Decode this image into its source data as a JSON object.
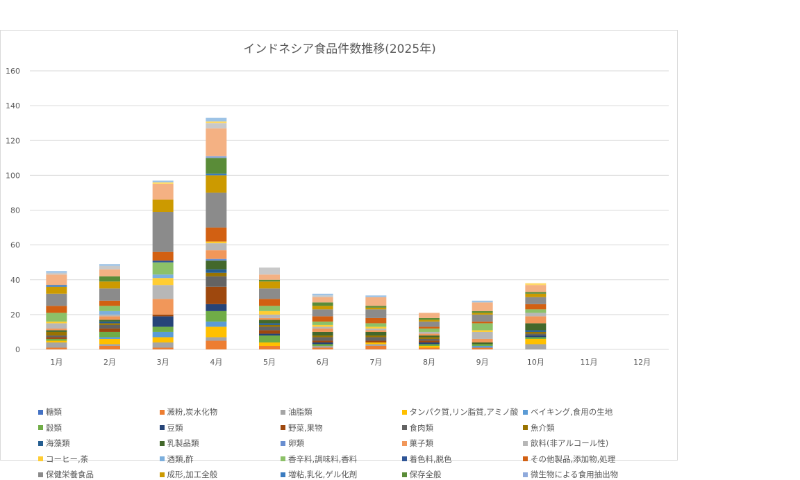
{
  "chart_data": {
    "type": "bar",
    "stacked": true,
    "title": "インドネシア食品件数推移(2025年)",
    "xlabel": "",
    "ylabel": "",
    "ylim": [
      0,
      160
    ],
    "yticks": [
      0,
      20,
      40,
      60,
      80,
      100,
      120,
      140,
      160
    ],
    "grid": true,
    "legend_position": "bottom",
    "categories": [
      "1月",
      "2月",
      "3月",
      "4月",
      "5月",
      "6月",
      "7月",
      "8月",
      "9月",
      "10月",
      "11月",
      "12月"
    ],
    "series": [
      {
        "name": "糖類",
        "color": "#4472c4",
        "values": [
          0,
          0,
          0,
          0,
          0,
          0,
          0,
          0,
          0,
          0,
          0,
          0
        ]
      },
      {
        "name": "澱粉,炭水化物",
        "color": "#ed7d31",
        "values": [
          1,
          2,
          1,
          5,
          2,
          1,
          2,
          1,
          1,
          0,
          0,
          0
        ]
      },
      {
        "name": "油脂類",
        "color": "#a5a5a5",
        "values": [
          3,
          1,
          3,
          2,
          0,
          1,
          1,
          0,
          0,
          3,
          0,
          0
        ]
      },
      {
        "name": "タンパク質,リン脂質,アミノ酸",
        "color": "#ffc000",
        "values": [
          1,
          3,
          3,
          6,
          2,
          0,
          1,
          1,
          0,
          3,
          0,
          0
        ]
      },
      {
        "name": "ベイキング,食用の生地",
        "color": "#5b9bd5",
        "values": [
          0,
          1,
          3,
          3,
          0,
          0,
          0,
          0,
          1,
          0,
          0,
          0
        ]
      },
      {
        "name": "穀類",
        "color": "#70ad47",
        "values": [
          1,
          3,
          3,
          6,
          4,
          1,
          0,
          1,
          1,
          1,
          0,
          0
        ]
      },
      {
        "name": "豆類",
        "color": "#264478",
        "values": [
          0,
          0,
          6,
          4,
          1,
          1,
          0,
          1,
          0,
          1,
          0,
          0
        ]
      },
      {
        "name": "野菜,果物",
        "color": "#9e480e",
        "values": [
          1,
          2,
          1,
          10,
          2,
          1,
          1,
          1,
          0,
          0,
          0,
          0
        ]
      },
      {
        "name": "食肉類",
        "color": "#636363",
        "values": [
          1,
          2,
          0,
          6,
          2,
          2,
          2,
          1,
          0,
          1,
          0,
          0
        ]
      },
      {
        "name": "魚介類",
        "color": "#997300",
        "values": [
          2,
          1,
          0,
          2,
          1,
          1,
          1,
          1,
          0,
          1,
          0,
          0
        ]
      },
      {
        "name": "海藻類",
        "color": "#255e91",
        "values": [
          0,
          1,
          0,
          2,
          1,
          0,
          0,
          0,
          0,
          1,
          0,
          0
        ]
      },
      {
        "name": "乳製品類",
        "color": "#43682b",
        "values": [
          1,
          1,
          0,
          5,
          2,
          2,
          2,
          1,
          1,
          4,
          0,
          0
        ]
      },
      {
        "name": "卵類",
        "color": "#698ed0",
        "values": [
          0,
          0,
          0,
          1,
          0,
          0,
          0,
          0,
          0,
          0,
          0,
          0
        ]
      },
      {
        "name": "菓子類",
        "color": "#f1975a",
        "values": [
          1,
          2,
          9,
          5,
          1,
          2,
          1,
          1,
          2,
          4,
          0,
          0
        ]
      },
      {
        "name": "飲料(非アルコール性)",
        "color": "#b7b7b7",
        "values": [
          3,
          1,
          8,
          4,
          2,
          1,
          1,
          1,
          4,
          2,
          0,
          0
        ]
      },
      {
        "name": "コーヒー,茶",
        "color": "#ffcd33",
        "values": [
          1,
          0,
          4,
          1,
          2,
          1,
          1,
          0,
          1,
          0,
          0,
          0
        ]
      },
      {
        "name": "酒類,酢",
        "color": "#7cafdd",
        "values": [
          0,
          2,
          2,
          0,
          0,
          0,
          0,
          0,
          0,
          0,
          0,
          0
        ]
      },
      {
        "name": "香辛料,調味料,香料",
        "color": "#8cc168",
        "values": [
          5,
          3,
          7,
          0,
          3,
          2,
          2,
          2,
          4,
          2,
          0,
          0
        ]
      },
      {
        "name": "着色料,脱色",
        "color": "#2f5597",
        "values": [
          0,
          0,
          1,
          0,
          0,
          0,
          0,
          0,
          0,
          0,
          0,
          0
        ]
      },
      {
        "name": "その他製品,添加物,処理",
        "color": "#d26012",
        "values": [
          4,
          3,
          5,
          8,
          4,
          3,
          3,
          1,
          1,
          3,
          0,
          0
        ]
      },
      {
        "name": "保健栄養食品",
        "color": "#8b8b8b",
        "values": [
          7,
          7,
          23,
          20,
          6,
          4,
          5,
          3,
          4,
          4,
          0,
          0
        ]
      },
      {
        "name": "成形,加工全般",
        "color": "#cc9a00",
        "values": [
          4,
          4,
          7,
          10,
          4,
          2,
          1,
          1,
          1,
          2,
          0,
          0
        ]
      },
      {
        "name": "増粘,乳化,ゲル化剤",
        "color": "#3a7cc0",
        "values": [
          1,
          0,
          0,
          1,
          0,
          0,
          0,
          0,
          0,
          0,
          0,
          0
        ]
      },
      {
        "name": "保存全般",
        "color": "#5a8c38",
        "values": [
          0,
          3,
          0,
          9,
          1,
          2,
          1,
          1,
          1,
          1,
          0,
          0
        ]
      },
      {
        "name": "微生物による食用抽出物",
        "color": "#8faadc",
        "values": [
          0,
          0,
          0,
          1,
          0,
          0,
          0,
          0,
          0,
          0,
          0,
          0
        ]
      },
      {
        "name": "",
        "color": "#f4b183",
        "values": [
          6,
          4,
          9,
          16,
          3,
          3,
          5,
          3,
          5,
          4,
          0,
          0
        ]
      },
      {
        "name": "",
        "color": "#c9c9c9",
        "values": [
          1,
          2,
          0,
          3,
          4,
          1,
          0,
          0,
          0,
          0,
          0,
          0
        ]
      },
      {
        "name": "",
        "color": "#ffd966",
        "values": [
          0,
          0,
          1,
          1,
          0,
          0,
          0,
          0,
          0,
          1,
          0,
          0
        ]
      },
      {
        "name": "",
        "color": "#9dc3e6",
        "values": [
          1,
          1,
          1,
          2,
          0,
          1,
          1,
          0,
          1,
          0,
          0,
          0
        ]
      }
    ]
  }
}
